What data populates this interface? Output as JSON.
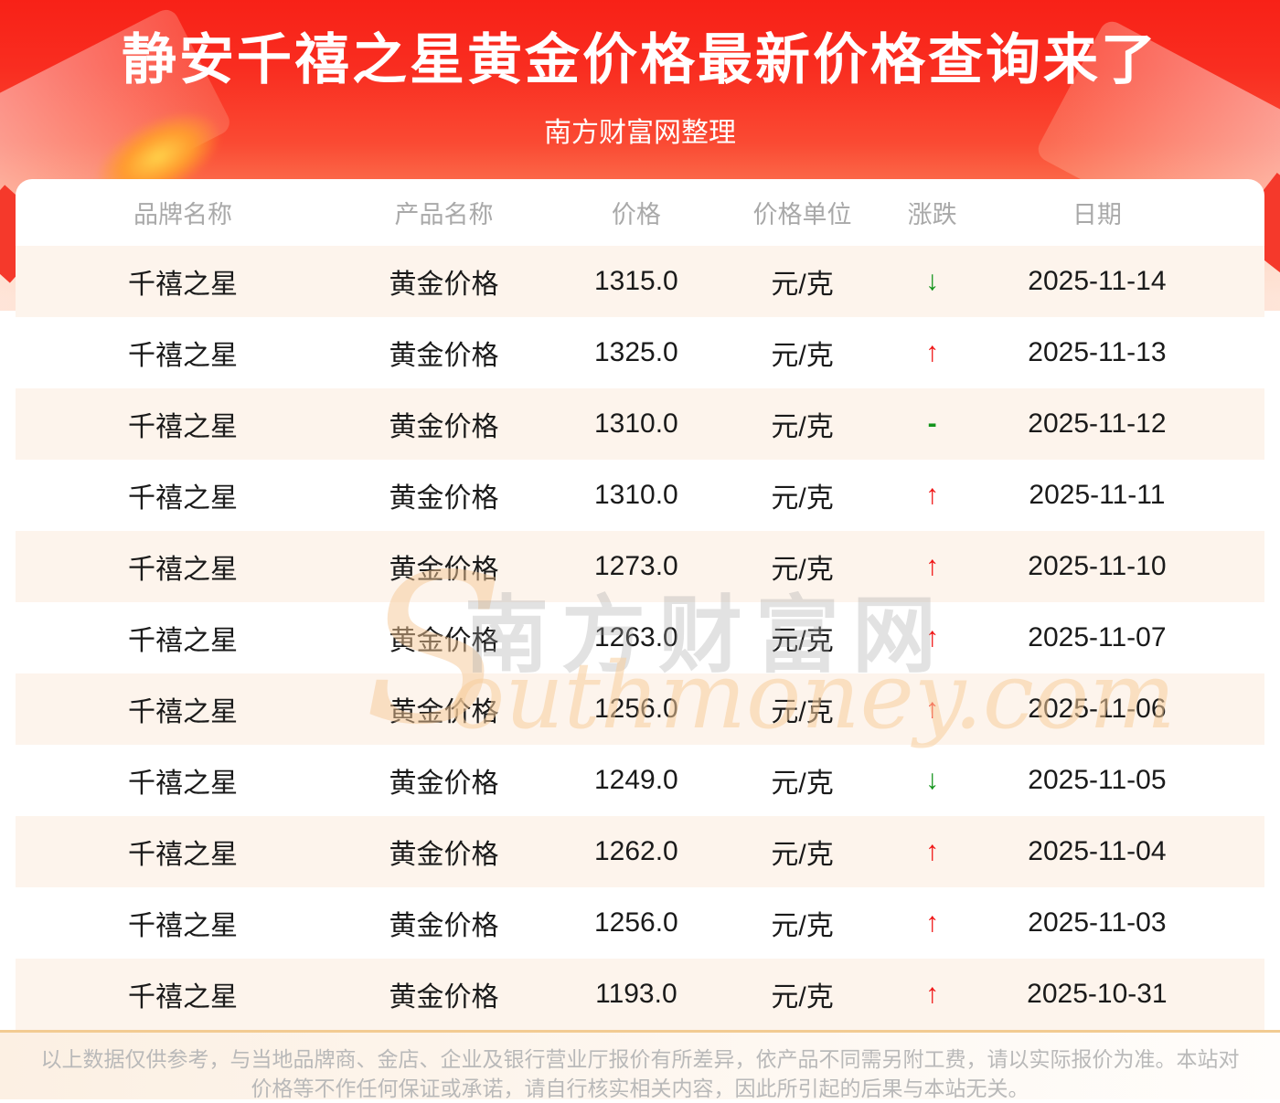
{
  "header": {
    "title": "静安千禧之星黄金价格最新价格查询来了",
    "subtitle": "南方财富网整理"
  },
  "table": {
    "columns": [
      "品牌名称",
      "产品名称",
      "价格",
      "价格单位",
      "涨跌",
      "日期"
    ],
    "rows": [
      {
        "brand": "千禧之星",
        "product": "黄金价格",
        "price": "1315.0",
        "unit": "元/克",
        "change": "down",
        "date": "2025-11-14"
      },
      {
        "brand": "千禧之星",
        "product": "黄金价格",
        "price": "1325.0",
        "unit": "元/克",
        "change": "up",
        "date": "2025-11-13"
      },
      {
        "brand": "千禧之星",
        "product": "黄金价格",
        "price": "1310.0",
        "unit": "元/克",
        "change": "flat",
        "date": "2025-11-12"
      },
      {
        "brand": "千禧之星",
        "product": "黄金价格",
        "price": "1310.0",
        "unit": "元/克",
        "change": "up",
        "date": "2025-11-11"
      },
      {
        "brand": "千禧之星",
        "product": "黄金价格",
        "price": "1273.0",
        "unit": "元/克",
        "change": "up",
        "date": "2025-11-10"
      },
      {
        "brand": "千禧之星",
        "product": "黄金价格",
        "price": "1263.0",
        "unit": "元/克",
        "change": "up",
        "date": "2025-11-07"
      },
      {
        "brand": "千禧之星",
        "product": "黄金价格",
        "price": "1256.0",
        "unit": "元/克",
        "change": "up",
        "date": "2025-11-06"
      },
      {
        "brand": "千禧之星",
        "product": "黄金价格",
        "price": "1249.0",
        "unit": "元/克",
        "change": "down",
        "date": "2025-11-05"
      },
      {
        "brand": "千禧之星",
        "product": "黄金价格",
        "price": "1262.0",
        "unit": "元/克",
        "change": "up",
        "date": "2025-11-04"
      },
      {
        "brand": "千禧之星",
        "product": "黄金价格",
        "price": "1256.0",
        "unit": "元/克",
        "change": "up",
        "date": "2025-11-03"
      },
      {
        "brand": "千禧之星",
        "product": "黄金价格",
        "price": "1193.0",
        "unit": "元/克",
        "change": "up",
        "date": "2025-10-31"
      }
    ],
    "change_glyphs": {
      "up": "↑",
      "down": "↓",
      "flat": "-"
    }
  },
  "watermark": {
    "initial": "S",
    "cn": "南方财富网",
    "en": "outhmoney.com"
  },
  "footer": {
    "line1": "以上数据仅供参考，与当地品牌商、金店、企业及银行营业厅报价有所差异，依产品不同需另附工费，请以实际报价为准。本站对",
    "line2": "价格等不作任何保证或承诺，请自行核实相关内容，因此所引起的后果与本站无关。"
  },
  "colors": {
    "up": "#f01515",
    "down": "#13941c",
    "flat": "#13941c",
    "accent_red": "#f82117",
    "row_alt": "#fdf4ec",
    "footer_border": "#f2cb92"
  }
}
